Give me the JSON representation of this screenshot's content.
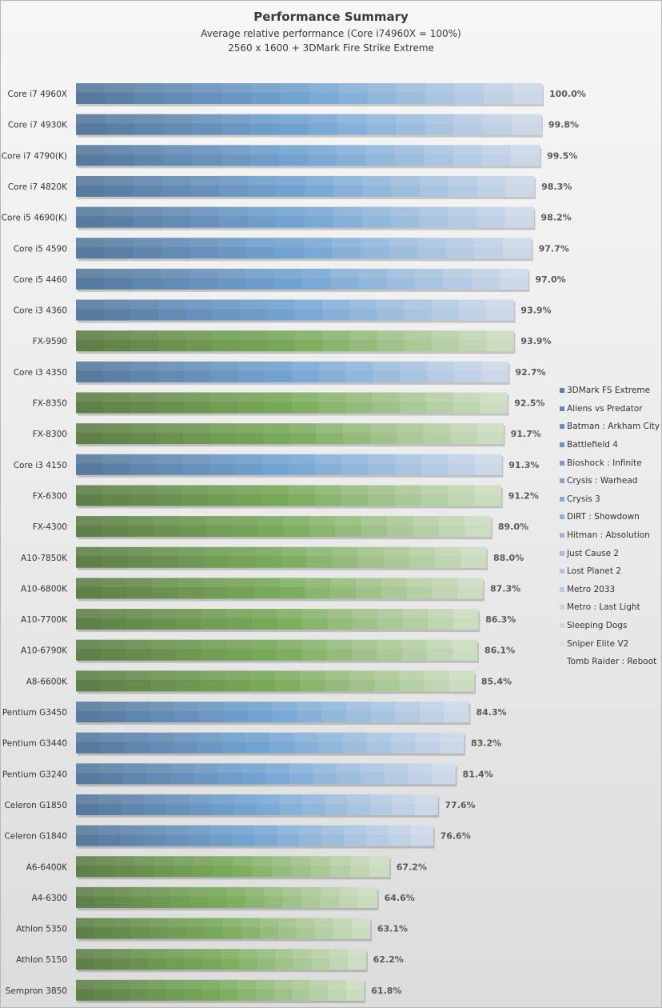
{
  "chart_data": {
    "type": "bar",
    "orientation": "horizontal",
    "stacked": true,
    "title": "Performance Summary",
    "subtitle": "Average relative performance (Core i74960X = 100%)",
    "subtitle2": "2560  x 1600  + 3DMark Fire Strike Extreme",
    "xlabel": "",
    "ylabel": "",
    "xlim": [
      0,
      100
    ],
    "grid": false,
    "legend_position": "right",
    "categories": [
      "Core i7 4960X",
      "Core i7 4930K",
      "Core i7 4790(K)",
      "Core i7 4820K",
      "Core i5 4690(K)",
      "Core i5 4590",
      "Core i5 4460",
      "Core i3 4360",
      "FX-9590",
      "Core i3 4350",
      "FX-8350",
      "FX-8300",
      "Core i3 4150",
      "FX-6300",
      "FX-4300",
      "A10-7850K",
      "A10-6800K",
      "A10-7700K",
      "A10-6790K",
      "A8-6600K",
      "Pentium G3450",
      "Pentium G3440",
      "Pentium G3240",
      "Celeron G1850",
      "Celeron G1840",
      "A6-6400K",
      "A4-6300",
      "Athlon 5350",
      "Athlon 5150",
      "Sempron 3850"
    ],
    "totals": [
      100.0,
      99.8,
      99.5,
      98.3,
      98.2,
      97.7,
      97.0,
      93.9,
      93.9,
      92.7,
      92.5,
      91.7,
      91.3,
      91.2,
      89.0,
      88.0,
      87.3,
      86.3,
      86.1,
      85.4,
      84.3,
      83.2,
      81.4,
      77.6,
      76.6,
      67.2,
      64.6,
      63.1,
      62.2,
      61.8
    ],
    "value_labels": [
      "100.0%",
      "99.8%",
      "99.5%",
      "98.3%",
      "98.2%",
      "97.7%",
      "97.0%",
      "93.9%",
      "93.9%",
      "92.7%",
      "92.5%",
      "91.7%",
      "91.3%",
      "91.2%",
      "89.0%",
      "88.0%",
      "87.3%",
      "86.3%",
      "86.1%",
      "85.4%",
      "84.3%",
      "83.2%",
      "81.4%",
      "77.6%",
      "76.6%",
      "67.2%",
      "64.6%",
      "63.1%",
      "62.2%",
      "61.8%"
    ],
    "vendor": [
      "intel",
      "intel",
      "intel",
      "intel",
      "intel",
      "intel",
      "intel",
      "intel",
      "amd",
      "intel",
      "amd",
      "amd",
      "intel",
      "amd",
      "amd",
      "amd",
      "amd",
      "amd",
      "amd",
      "amd",
      "intel",
      "intel",
      "intel",
      "intel",
      "intel",
      "amd",
      "amd",
      "amd",
      "amd",
      "amd"
    ],
    "series": [
      {
        "name": "3DMark FS Extreme",
        "share": 6.25
      },
      {
        "name": "Aliens vs Predator",
        "share": 6.25
      },
      {
        "name": "Batman : Arkham City",
        "share": 6.25
      },
      {
        "name": "Battlefield 4",
        "share": 6.25
      },
      {
        "name": "Bioshock : Infinite",
        "share": 6.25
      },
      {
        "name": "Crysis : Warhead",
        "share": 6.25
      },
      {
        "name": "Crysis 3",
        "share": 6.25
      },
      {
        "name": "DiRT : Showdown",
        "share": 6.25
      },
      {
        "name": "Hitman : Absolution",
        "share": 6.25
      },
      {
        "name": "Just Cause 2",
        "share": 6.25
      },
      {
        "name": "Lost Planet 2",
        "share": 6.25
      },
      {
        "name": "Metro 2033",
        "share": 6.25
      },
      {
        "name": "Metro : Last Light",
        "share": 6.25
      },
      {
        "name": "Sleeping Dogs",
        "share": 6.25
      },
      {
        "name": "Sniper Elite V2",
        "share": 6.25
      },
      {
        "name": "Tomb Raider : Reboot",
        "share": 6.25
      }
    ],
    "colors": {
      "intel_dark": "#587a9e",
      "intel_mid": "#74a6d4",
      "intel_light": "#ccd8e8",
      "amd_dark": "#5f8048",
      "amd_mid": "#7aab5a",
      "amd_light": "#cbdcc0",
      "legend_dark": "#5a7fa8",
      "legend_light": "#dde6f2",
      "label_text": "#595959"
    }
  }
}
